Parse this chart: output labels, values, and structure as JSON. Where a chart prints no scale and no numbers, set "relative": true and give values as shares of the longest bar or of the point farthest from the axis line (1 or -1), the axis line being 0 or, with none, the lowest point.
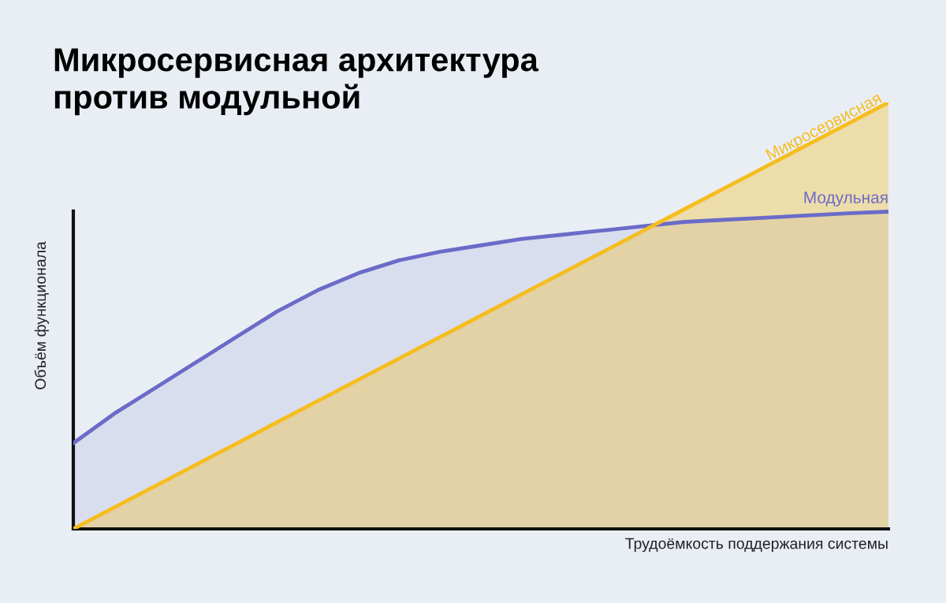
{
  "chart_data": {
    "type": "area",
    "title": "Микросервисная архитектура\nпротив модульной",
    "xlabel": "Трудоёмкость поддержания системы",
    "ylabel": "Объём функционала",
    "relative": true,
    "legend": false,
    "categories": [
      null,
      null,
      null,
      null,
      null,
      null,
      null,
      null,
      null,
      null,
      null,
      null,
      null,
      null,
      null,
      null,
      null,
      null,
      null,
      null,
      null
    ],
    "series": [
      {
        "name": "Модульная",
        "color": "#6b6bc8",
        "values": [
          0.201,
          0.27,
          0.33,
          0.39,
          0.45,
          0.51,
          0.56,
          0.6,
          0.63,
          0.65,
          0.665,
          0.68,
          0.69,
          0.7,
          0.71,
          0.72,
          0.725,
          0.73,
          0.735,
          0.74,
          0.744
        ]
      },
      {
        "name": "Микросервисная",
        "color": "#f5bd1f",
        "values": [
          0,
          0.05,
          0.1,
          0.15,
          0.2,
          0.25,
          0.3,
          0.35,
          0.4,
          0.45,
          0.5,
          0.55,
          0.6,
          0.65,
          0.7,
          0.75,
          0.8,
          0.85,
          0.9,
          0.95,
          1
        ]
      }
    ]
  }
}
